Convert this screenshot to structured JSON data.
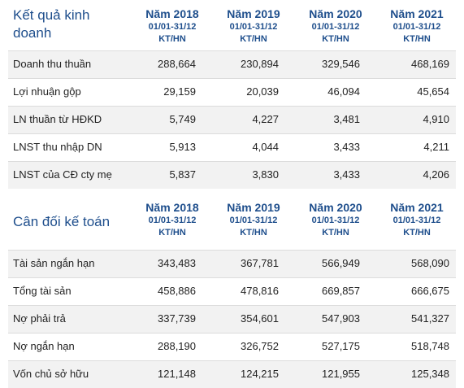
{
  "income": {
    "title_line1": "Kết quả kinh",
    "title_line2": "doanh",
    "columns": [
      {
        "year": "Năm 2018",
        "period": "01/01-31/12",
        "type": "KT/HN"
      },
      {
        "year": "Năm 2019",
        "period": "01/01-31/12",
        "type": "KT/HN"
      },
      {
        "year": "Năm 2020",
        "period": "01/01-31/12",
        "type": "KT/HN"
      },
      {
        "year": "Năm 2021",
        "period": "01/01-31/12",
        "type": "KT/HN"
      }
    ],
    "rows": [
      {
        "label": "Doanh thu thuần",
        "values": [
          "288,664",
          "230,894",
          "329,546",
          "468,169"
        ]
      },
      {
        "label": "Lợi nhuận gộp",
        "values": [
          "29,159",
          "20,039",
          "46,094",
          "45,654"
        ]
      },
      {
        "label": "LN thuần từ HĐKD",
        "values": [
          "5,749",
          "4,227",
          "3,481",
          "4,910"
        ]
      },
      {
        "label": "LNST thu nhập DN",
        "values": [
          "5,913",
          "4,044",
          "3,433",
          "4,211"
        ]
      },
      {
        "label": "LNST của CĐ cty mẹ",
        "values": [
          "5,837",
          "3,830",
          "3,433",
          "4,206"
        ]
      }
    ]
  },
  "balance": {
    "title": "Cân đối kế toán",
    "columns": [
      {
        "year": "Năm 2018",
        "period": "01/01-31/12",
        "type": "KT/HN"
      },
      {
        "year": "Năm 2019",
        "period": "01/01-31/12",
        "type": "KT/HN"
      },
      {
        "year": "Năm 2020",
        "period": "01/01-31/12",
        "type": "KT/HN"
      },
      {
        "year": "Năm 2021",
        "period": "01/01-31/12",
        "type": "KT/HN"
      }
    ],
    "rows": [
      {
        "label": "Tài sản ngắn hạn",
        "values": [
          "343,483",
          "367,781",
          "566,949",
          "568,090"
        ]
      },
      {
        "label": "Tổng tài sản",
        "values": [
          "458,886",
          "478,816",
          "669,857",
          "666,675"
        ]
      },
      {
        "label": "Nợ phải trả",
        "values": [
          "337,739",
          "354,601",
          "547,903",
          "541,327"
        ]
      },
      {
        "label": "Nợ ngắn hạn",
        "values": [
          "288,190",
          "326,752",
          "527,175",
          "518,748"
        ]
      },
      {
        "label": "Vốn chủ sở hữu",
        "values": [
          "121,148",
          "124,215",
          "121,955",
          "125,348"
        ]
      }
    ]
  },
  "colors": {
    "heading": "#1e4e8c",
    "row_shade": "#f2f2f2",
    "divider": "#dcdcdc"
  }
}
